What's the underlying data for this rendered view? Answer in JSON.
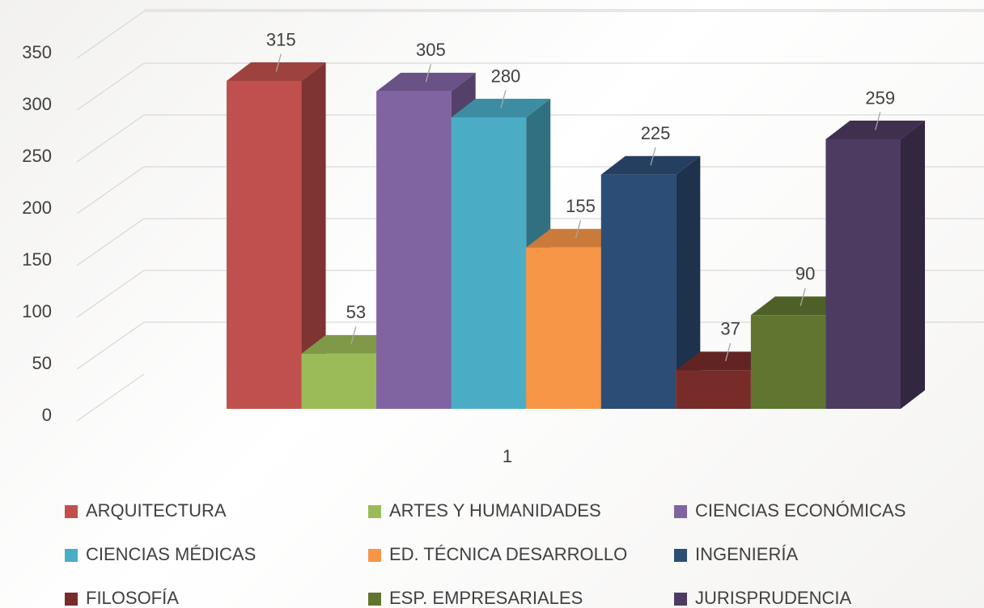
{
  "chart_data": {
    "type": "bar3d",
    "categories": [
      "1"
    ],
    "ylim": [
      0,
      350
    ],
    "yticks": [
      0,
      50,
      100,
      150,
      200,
      250,
      300,
      350
    ],
    "grid": true,
    "legend": "bottom",
    "series": [
      {
        "name": "ARQUITECTURA",
        "color": "#c0504d",
        "values": [
          315
        ]
      },
      {
        "name": "ARTES Y HUMANIDADES",
        "color": "#9bbb59",
        "values": [
          53
        ]
      },
      {
        "name": "CIENCIAS ECONÓMICAS",
        "color": "#8064a2",
        "values": [
          305
        ]
      },
      {
        "name": "CIENCIAS MÉDICAS",
        "color": "#4bacc6",
        "values": [
          280
        ]
      },
      {
        "name": "ED. TÉCNICA DESARROLLO",
        "color": "#f79646",
        "values": [
          155
        ]
      },
      {
        "name": "INGENIERÍA",
        "color": "#2c4d75",
        "values": [
          225
        ]
      },
      {
        "name": "FILOSOFÍA",
        "color": "#772c2a",
        "values": [
          37
        ]
      },
      {
        "name": "ESP. EMPRESARIALES",
        "color": "#5f7530",
        "values": [
          90
        ]
      },
      {
        "name": "JURISPRUDENCIA",
        "color": "#4d3b62",
        "values": [
          259
        ]
      }
    ]
  }
}
